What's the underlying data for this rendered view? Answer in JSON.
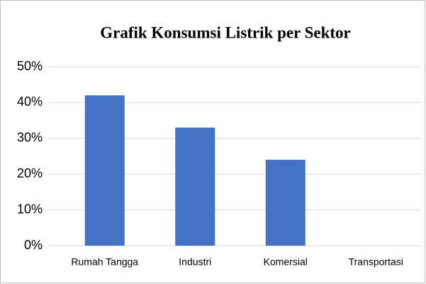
{
  "chart_data": {
    "type": "bar",
    "title": "Grafik Konsumsi Listrik per Sektor",
    "categories": [
      "Rumah Tangga",
      "Industri",
      "Komersial",
      "Transportasi"
    ],
    "values": [
      42,
      33,
      24,
      0
    ],
    "color": "#4472c4",
    "ylim": [
      0,
      50
    ],
    "yticks": [
      {
        "value": 0,
        "label": "0%"
      },
      {
        "value": 10,
        "label": "10%"
      },
      {
        "value": 20,
        "label": "20%"
      },
      {
        "value": 30,
        "label": "30%"
      },
      {
        "value": 40,
        "label": "40%"
      },
      {
        "value": 50,
        "label": "50%"
      }
    ],
    "grid": true
  }
}
